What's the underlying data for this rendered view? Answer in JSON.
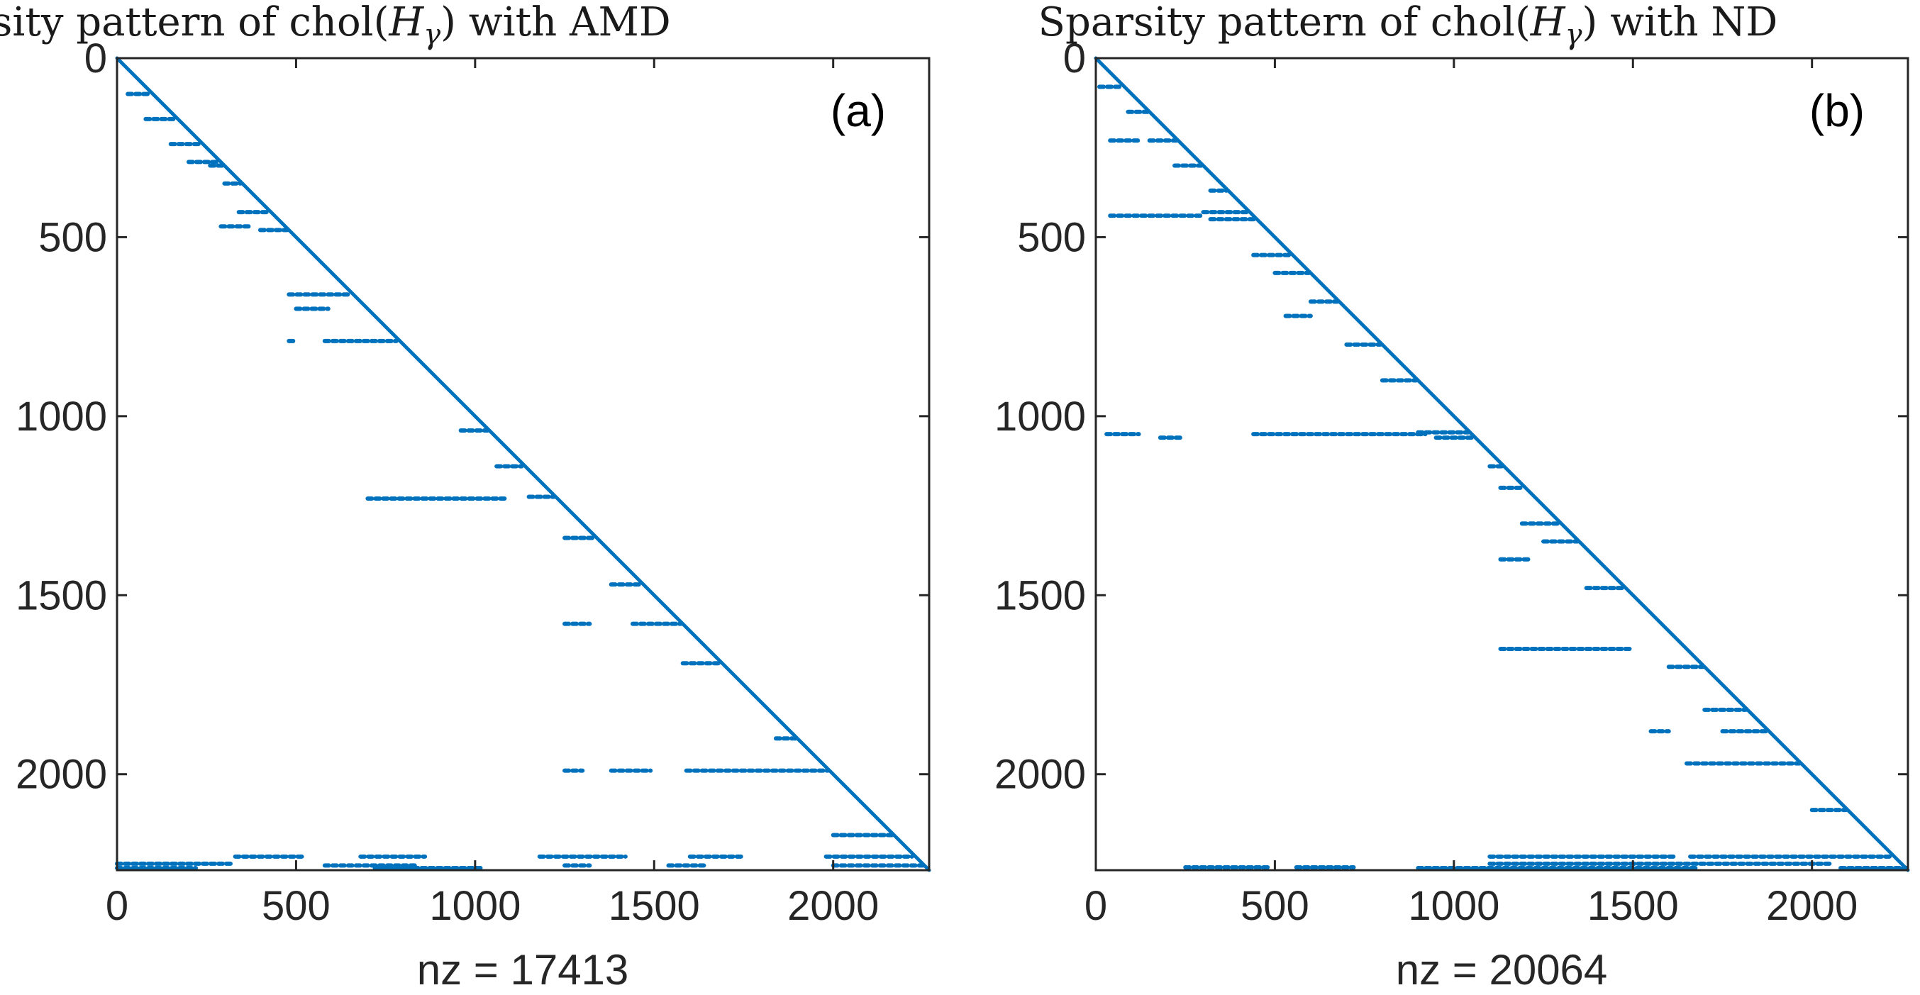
{
  "chart_data": [
    {
      "type": "scatter",
      "title_prefix": "Sparsity pattern of chol(",
      "title_var": "H",
      "title_sub": "γ",
      "title_suffix": ") with AMD",
      "panel_label": "(a)",
      "xlabel": "nz = 17413",
      "n": 2268,
      "xlim": [
        0,
        2268
      ],
      "ylim": [
        0,
        2268
      ],
      "xticks": [
        0,
        500,
        1000,
        1500,
        2000
      ],
      "yticks": [
        0,
        500,
        1000,
        1500,
        2000
      ],
      "marker_color": "#0072BD",
      "diagonal": [
        [
          0,
          0
        ],
        [
          2268,
          2268
        ]
      ],
      "row_segments": [
        {
          "row": 100,
          "x0": 30,
          "x1": 95
        },
        {
          "row": 170,
          "x0": 80,
          "x1": 160
        },
        {
          "row": 240,
          "x0": 150,
          "x1": 235
        },
        {
          "row": 290,
          "x0": 200,
          "x1": 280
        },
        {
          "row": 300,
          "x0": 260,
          "x1": 295
        },
        {
          "row": 350,
          "x0": 300,
          "x1": 345
        },
        {
          "row": 430,
          "x0": 340,
          "x1": 425
        },
        {
          "row": 470,
          "x0": 290,
          "x1": 370
        },
        {
          "row": 480,
          "x0": 400,
          "x1": 475
        },
        {
          "row": 660,
          "x0": 480,
          "x1": 650
        },
        {
          "row": 700,
          "x0": 500,
          "x1": 590
        },
        {
          "row": 790,
          "x0": 480,
          "x1": 500
        },
        {
          "row": 790,
          "x0": 580,
          "x1": 780
        },
        {
          "row": 1040,
          "x0": 960,
          "x1": 1035
        },
        {
          "row": 1140,
          "x0": 1060,
          "x1": 1130
        },
        {
          "row": 1230,
          "x0": 700,
          "x1": 1090
        },
        {
          "row": 1225,
          "x0": 1150,
          "x1": 1220
        },
        {
          "row": 1340,
          "x0": 1250,
          "x1": 1335
        },
        {
          "row": 1470,
          "x0": 1380,
          "x1": 1465
        },
        {
          "row": 1580,
          "x0": 1250,
          "x1": 1320
        },
        {
          "row": 1580,
          "x0": 1440,
          "x1": 1575
        },
        {
          "row": 1690,
          "x0": 1580,
          "x1": 1685
        },
        {
          "row": 1900,
          "x0": 1840,
          "x1": 1895
        },
        {
          "row": 1990,
          "x0": 1250,
          "x1": 1300
        },
        {
          "row": 1990,
          "x0": 1380,
          "x1": 1490
        },
        {
          "row": 1990,
          "x0": 1590,
          "x1": 1985
        },
        {
          "row": 2170,
          "x0": 2000,
          "x1": 2165
        },
        {
          "row": 2230,
          "x0": 330,
          "x1": 520
        },
        {
          "row": 2230,
          "x0": 680,
          "x1": 860
        },
        {
          "row": 2230,
          "x0": 1180,
          "x1": 1420
        },
        {
          "row": 2230,
          "x0": 1600,
          "x1": 1750
        },
        {
          "row": 2230,
          "x0": 1980,
          "x1": 2220
        },
        {
          "row": 2250,
          "x0": 0,
          "x1": 320
        },
        {
          "row": 2255,
          "x0": 580,
          "x1": 840
        },
        {
          "row": 2255,
          "x0": 1250,
          "x1": 1320
        },
        {
          "row": 2255,
          "x0": 1540,
          "x1": 1640
        },
        {
          "row": 2255,
          "x0": 2000,
          "x1": 2260
        },
        {
          "row": 2262,
          "x0": 0,
          "x1": 220
        },
        {
          "row": 2262,
          "x0": 720,
          "x1": 1020
        }
      ]
    },
    {
      "type": "scatter",
      "title_prefix": "Sparsity pattern of chol(",
      "title_var": "H",
      "title_sub": "γ",
      "title_suffix": ") with ND",
      "panel_label": "(b)",
      "xlabel": "nz = 20064",
      "n": 2268,
      "xlim": [
        0,
        2268
      ],
      "ylim": [
        0,
        2268
      ],
      "xticks": [
        0,
        500,
        1000,
        1500,
        2000
      ],
      "yticks": [
        0,
        500,
        1000,
        1500,
        2000
      ],
      "marker_color": "#0072BD",
      "diagonal": [
        [
          0,
          0
        ],
        [
          2268,
          2268
        ]
      ],
      "row_segments": [
        {
          "row": 80,
          "x0": 10,
          "x1": 75
        },
        {
          "row": 150,
          "x0": 90,
          "x1": 145
        },
        {
          "row": 230,
          "x0": 40,
          "x1": 120
        },
        {
          "row": 230,
          "x0": 150,
          "x1": 225
        },
        {
          "row": 300,
          "x0": 220,
          "x1": 295
        },
        {
          "row": 370,
          "x0": 320,
          "x1": 365
        },
        {
          "row": 430,
          "x0": 300,
          "x1": 425
        },
        {
          "row": 440,
          "x0": 40,
          "x1": 300
        },
        {
          "row": 450,
          "x0": 320,
          "x1": 445
        },
        {
          "row": 550,
          "x0": 440,
          "x1": 545
        },
        {
          "row": 600,
          "x0": 500,
          "x1": 595
        },
        {
          "row": 680,
          "x0": 600,
          "x1": 675
        },
        {
          "row": 720,
          "x0": 530,
          "x1": 600
        },
        {
          "row": 800,
          "x0": 700,
          "x1": 795
        },
        {
          "row": 900,
          "x0": 800,
          "x1": 895
        },
        {
          "row": 1050,
          "x0": 30,
          "x1": 120
        },
        {
          "row": 1060,
          "x0": 180,
          "x1": 240
        },
        {
          "row": 1050,
          "x0": 440,
          "x1": 920
        },
        {
          "row": 1045,
          "x0": 900,
          "x1": 1040
        },
        {
          "row": 1060,
          "x0": 950,
          "x1": 1050
        },
        {
          "row": 1140,
          "x0": 1100,
          "x1": 1135
        },
        {
          "row": 1200,
          "x0": 1130,
          "x1": 1195
        },
        {
          "row": 1300,
          "x0": 1190,
          "x1": 1295
        },
        {
          "row": 1350,
          "x0": 1250,
          "x1": 1345
        },
        {
          "row": 1400,
          "x0": 1130,
          "x1": 1210
        },
        {
          "row": 1480,
          "x0": 1370,
          "x1": 1475
        },
        {
          "row": 1650,
          "x0": 1130,
          "x1": 1500
        },
        {
          "row": 1700,
          "x0": 1600,
          "x1": 1695
        },
        {
          "row": 1820,
          "x0": 1700,
          "x1": 1815
        },
        {
          "row": 1880,
          "x0": 1550,
          "x1": 1600
        },
        {
          "row": 1880,
          "x0": 1750,
          "x1": 1875
        },
        {
          "row": 1970,
          "x0": 1650,
          "x1": 1965
        },
        {
          "row": 2100,
          "x0": 2000,
          "x1": 2095
        },
        {
          "row": 2230,
          "x0": 1100,
          "x1": 1620
        },
        {
          "row": 2230,
          "x0": 1660,
          "x1": 2220
        },
        {
          "row": 2250,
          "x0": 1100,
          "x1": 2050
        },
        {
          "row": 2260,
          "x0": 250,
          "x1": 480
        },
        {
          "row": 2260,
          "x0": 560,
          "x1": 720
        },
        {
          "row": 2262,
          "x0": 900,
          "x1": 1680
        },
        {
          "row": 2262,
          "x0": 2080,
          "x1": 2265
        }
      ]
    }
  ]
}
